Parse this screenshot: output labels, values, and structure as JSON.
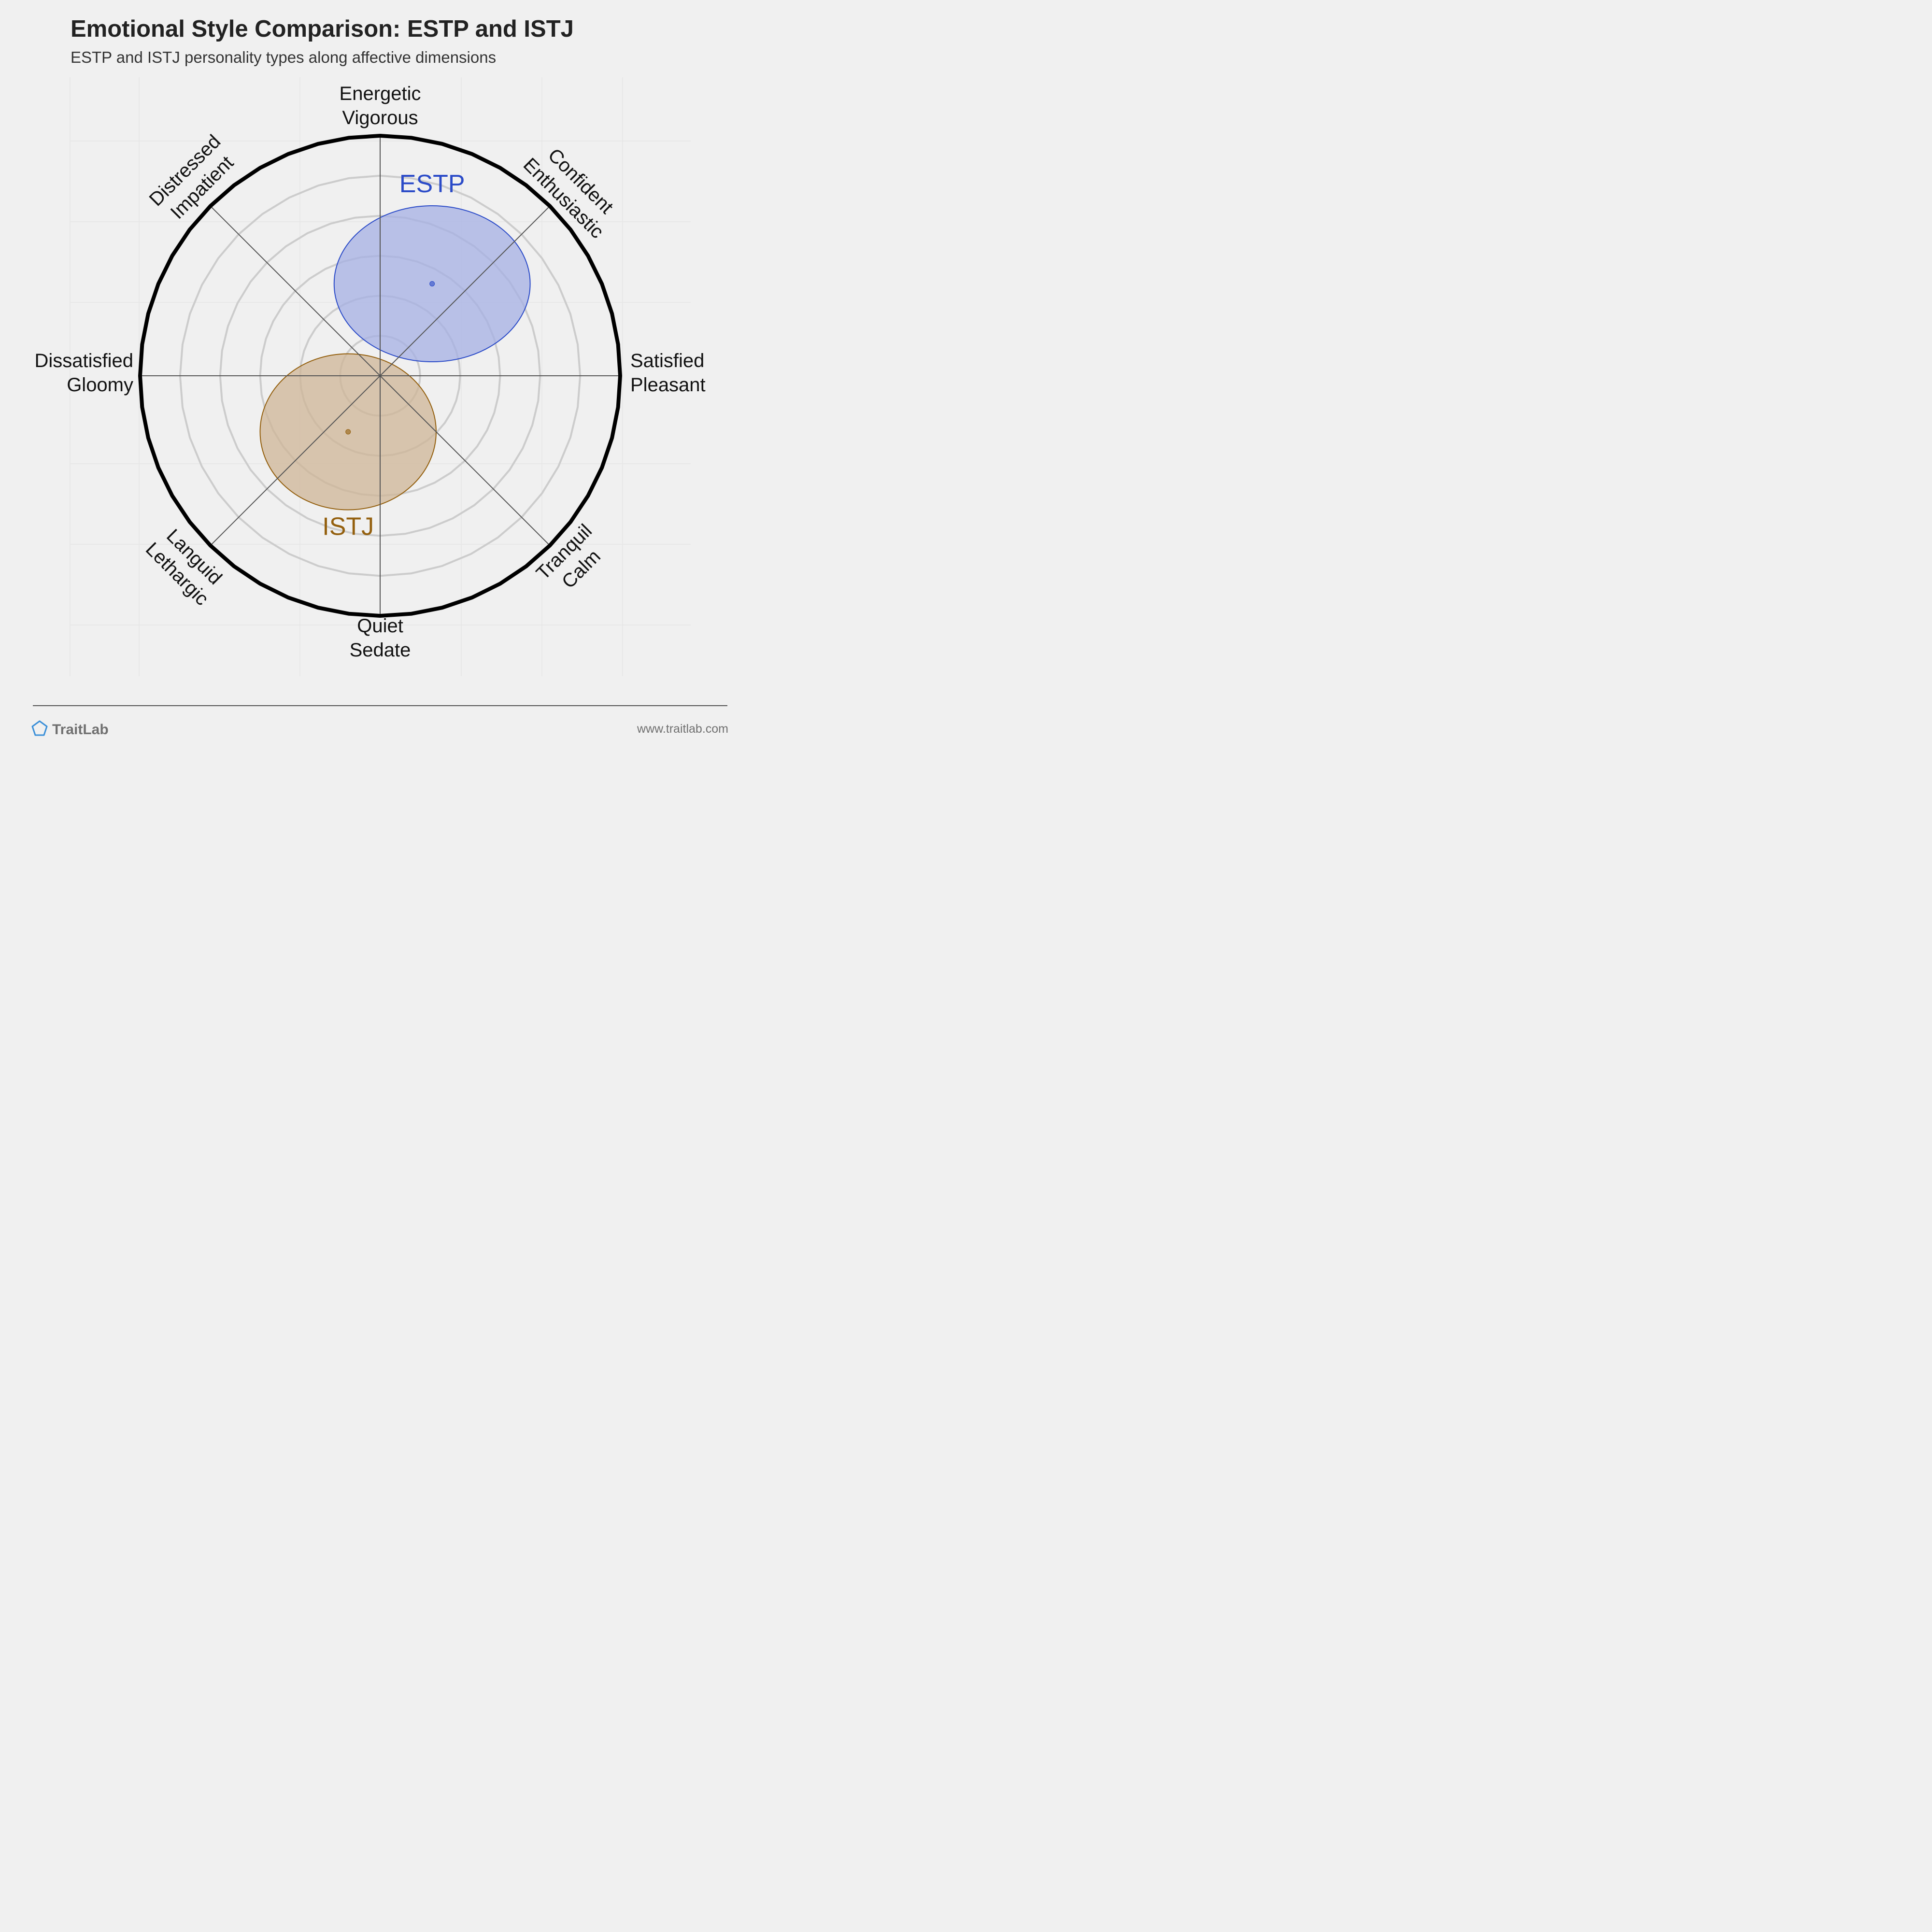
{
  "title": "Emotional Style Comparison: ESTP and ISTJ",
  "subtitle": "ESTP and ISTJ personality types along affective dimensions",
  "chart_data": {
    "type": "scatter",
    "axes": [
      {
        "id": "top",
        "lines": [
          "Energetic",
          "Vigorous"
        ]
      },
      {
        "id": "top-right",
        "lines": [
          "Confident",
          "Enthusiastic"
        ]
      },
      {
        "id": "right",
        "lines": [
          "Satisfied",
          "Pleasant"
        ]
      },
      {
        "id": "bottom-right",
        "lines": [
          "Tranquil",
          "Calm"
        ]
      },
      {
        "id": "bottom",
        "lines": [
          "Quiet",
          "Sedate"
        ]
      },
      {
        "id": "bottom-left",
        "lines": [
          "Languid",
          "Lethargic"
        ]
      },
      {
        "id": "left",
        "lines": [
          "Dissatisfied",
          "Gloomy"
        ]
      },
      {
        "id": "top-left",
        "lines": [
          "Distressed",
          "Impatient"
        ]
      }
    ],
    "x_axis": {
      "negative": "Dissatisfied / Gloomy",
      "positive": "Satisfied / Pleasant",
      "range": [
        -6,
        6
      ]
    },
    "y_axis": {
      "negative": "Quiet / Sedate",
      "positive": "Energetic / Vigorous",
      "range": [
        -6,
        6
      ]
    },
    "rings": 6,
    "series": [
      {
        "name": "ESTP",
        "x": 1.3,
        "y": 2.3,
        "spread_x": 2.45,
        "spread_y": 1.95,
        "color": "#2b4bc8",
        "fill": "#a6b0e4"
      },
      {
        "name": "ISTJ",
        "x": -0.8,
        "y": -1.4,
        "spread_x": 2.2,
        "spread_y": 1.95,
        "color": "#94600f",
        "fill": "#cfb597"
      }
    ]
  },
  "footer": {
    "brand": "TraitLab",
    "url": "www.traitlab.com",
    "brand_color": "#3a8fd8"
  }
}
